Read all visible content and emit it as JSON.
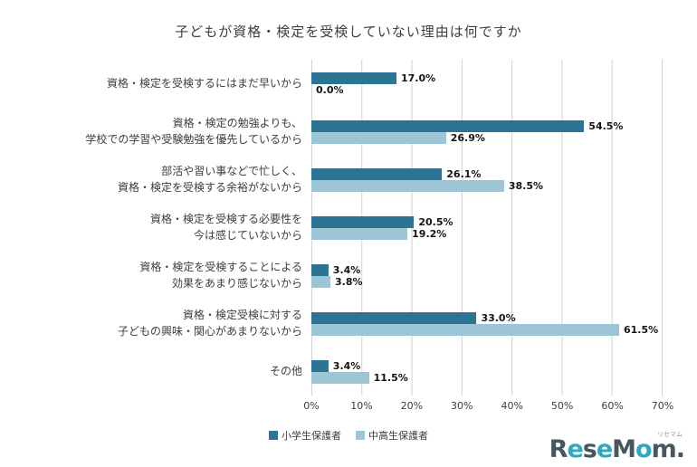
{
  "title": "子どもが資格・検定を受検していない理由は何ですか",
  "chart_data": {
    "type": "bar",
    "orientation": "horizontal",
    "categories": [
      [
        "資格・検定を受検するにはまだ早いから"
      ],
      [
        "資格・検定の勉強よりも、",
        "学校での学習や受験勉強を優先しているから"
      ],
      [
        "部活や習い事などで忙しく、",
        "資格・検定を受検する余裕がないから"
      ],
      [
        "資格・検定を受検する必要性を",
        "今は感じていないから"
      ],
      [
        "資格・検定を受検することによる",
        "効果をあまり感じないから"
      ],
      [
        "資格・検定受検に対する",
        "子どもの興味・関心があまりないから"
      ],
      [
        "その他"
      ]
    ],
    "series": [
      {
        "name": "小学生保護者",
        "color": "#2d7394",
        "values": [
          17.0,
          54.5,
          26.1,
          20.5,
          3.4,
          33.0,
          3.4
        ]
      },
      {
        "name": "中高生保護者",
        "color": "#9cc6d6",
        "values": [
          0.0,
          26.9,
          38.5,
          19.2,
          3.8,
          61.5,
          11.5
        ]
      }
    ],
    "xlim": [
      0,
      70
    ],
    "xticks": [
      "0%",
      "10%",
      "20%",
      "30%",
      "40%",
      "50%",
      "60%",
      "70%"
    ],
    "value_suffix": "%",
    "grid": true,
    "legend_position": "bottom"
  },
  "logo": {
    "text": "ReseMom.",
    "ruby": "リセマム"
  }
}
